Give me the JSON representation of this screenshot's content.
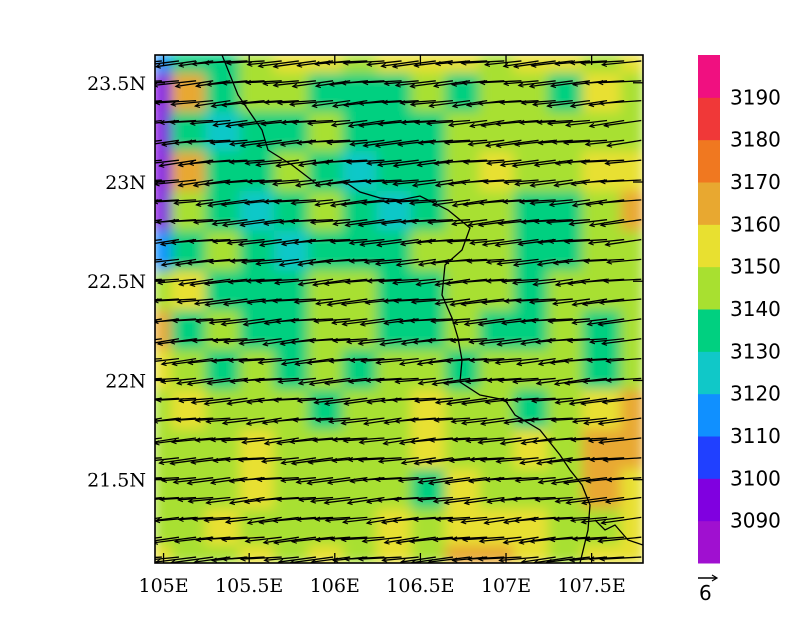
{
  "chart_data": {
    "type": "heatmap",
    "title": "",
    "xlabel": "",
    "ylabel": "",
    "xlim": [
      104.95,
      107.8
    ],
    "ylim": [
      21.08,
      23.64
    ],
    "x_ticks": [
      {
        "value": 105.0,
        "label": "105E"
      },
      {
        "value": 105.5,
        "label": "105.5E"
      },
      {
        "value": 106.0,
        "label": "106E"
      },
      {
        "value": 106.5,
        "label": "106.5E"
      },
      {
        "value": 107.0,
        "label": "107E"
      },
      {
        "value": 107.5,
        "label": "107.5E"
      }
    ],
    "y_ticks": [
      {
        "value": 21.5,
        "label": "21.5N"
      },
      {
        "value": 22.0,
        "label": "22N"
      },
      {
        "value": 22.5,
        "label": "22.5N"
      },
      {
        "value": 23.0,
        "label": "23N"
      },
      {
        "value": 23.5,
        "label": "23.5N"
      }
    ],
    "colorbar": {
      "levels": [
        3090,
        3100,
        3110,
        3120,
        3130,
        3140,
        3150,
        3160,
        3170,
        3180,
        3190
      ],
      "labels": [
        "3090",
        "3100",
        "3110",
        "3120",
        "3130",
        "3140",
        "3150",
        "3160",
        "3170",
        "3180",
        "3190"
      ],
      "colors": [
        "#a010d0",
        "#8000e0",
        "#2040ff",
        "#1090ff",
        "#10c8c8",
        "#00d080",
        "#a8e030",
        "#e8e030",
        "#e8a830",
        "#f07820",
        "#f03838",
        "#f01080"
      ]
    },
    "field_grid": {
      "lon": [
        104.95,
        105.15,
        105.35,
        105.55,
        105.75,
        105.95,
        106.15,
        106.35,
        106.55,
        106.75,
        106.95,
        107.15,
        107.35,
        107.55,
        107.8
      ],
      "lat": [
        23.64,
        23.45,
        23.25,
        23.05,
        22.85,
        22.65,
        22.45,
        22.25,
        22.05,
        21.85,
        21.65,
        21.45,
        21.25,
        21.08
      ],
      "values": [
        [
          3118,
          3136,
          3136,
          3143,
          3150,
          3152,
          3146,
          3150,
          3156,
          3150,
          3145,
          3152,
          3150,
          3146,
          3150
        ],
        [
          3094,
          3162,
          3132,
          3140,
          3143,
          3138,
          3136,
          3132,
          3140,
          3135,
          3145,
          3140,
          3136,
          3150,
          3146
        ],
        [
          3092,
          3132,
          3128,
          3133,
          3137,
          3146,
          3136,
          3130,
          3133,
          3140,
          3146,
          3143,
          3146,
          3143,
          3146
        ],
        [
          3096,
          3168,
          3132,
          3132,
          3143,
          3132,
          3125,
          3136,
          3135,
          3146,
          3150,
          3143,
          3146,
          3150,
          3150
        ],
        [
          3098,
          3142,
          3136,
          3128,
          3132,
          3146,
          3132,
          3128,
          3133,
          3143,
          3146,
          3136,
          3130,
          3143,
          3160
        ],
        [
          3110,
          3136,
          3142,
          3132,
          3125,
          3136,
          3136,
          3132,
          3143,
          3146,
          3140,
          3132,
          3136,
          3143,
          3146
        ],
        [
          3146,
          3150,
          3133,
          3136,
          3132,
          3143,
          3146,
          3130,
          3133,
          3143,
          3146,
          3136,
          3143,
          3146,
          3146
        ],
        [
          3166,
          3130,
          3145,
          3136,
          3130,
          3143,
          3146,
          3136,
          3132,
          3143,
          3136,
          3132,
          3143,
          3136,
          3140
        ],
        [
          3150,
          3143,
          3136,
          3140,
          3136,
          3146,
          3130,
          3146,
          3140,
          3136,
          3146,
          3143,
          3146,
          3130,
          3146
        ],
        [
          3146,
          3150,
          3140,
          3146,
          3143,
          3136,
          3143,
          3146,
          3150,
          3143,
          3146,
          3136,
          3146,
          3150,
          3165
        ],
        [
          3146,
          3146,
          3143,
          3150,
          3146,
          3146,
          3143,
          3146,
          3150,
          3146,
          3146,
          3150,
          3146,
          3168,
          3160
        ],
        [
          3146,
          3143,
          3146,
          3150,
          3146,
          3143,
          3146,
          3146,
          3136,
          3150,
          3146,
          3143,
          3146,
          3160,
          3150
        ],
        [
          3146,
          3146,
          3150,
          3146,
          3146,
          3143,
          3146,
          3150,
          3146,
          3150,
          3158,
          3150,
          3146,
          3146,
          3150
        ],
        [
          3150,
          3146,
          3146,
          3150,
          3146,
          3150,
          3146,
          3150,
          3146,
          3160,
          3165,
          3150,
          3146,
          3150,
          3150
        ]
      ]
    },
    "wind_vectors": {
      "u_mean": -6.0,
      "v_mean": -0.6,
      "lon_spacing": 0.1,
      "lat_spacing": 0.1
    },
    "reference_vector": {
      "magnitude": 6,
      "label": "6"
    }
  }
}
